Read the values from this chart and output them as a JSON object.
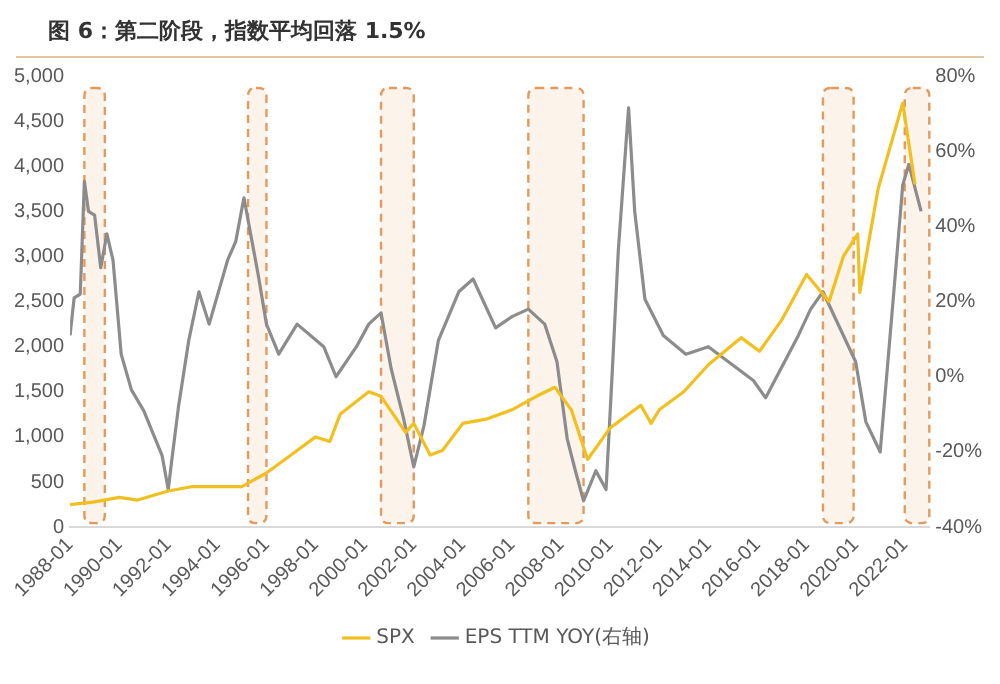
{
  "chart_data": {
    "type": "line",
    "title": "图 6：第二阶段，指数平均回落 1.5%",
    "xlim": [
      "1988-01",
      "2023-01"
    ],
    "xticks": [
      "1988-01",
      "1990-01",
      "1992-01",
      "1994-01",
      "1996-01",
      "1998-01",
      "2000-01",
      "2002-01",
      "2004-01",
      "2006-01",
      "2008-01",
      "2010-01",
      "2012-01",
      "2014-01",
      "2016-01",
      "2018-01",
      "2020-01",
      "2022-01"
    ],
    "ylim": [
      0,
      5000
    ],
    "yticks": [
      0,
      500,
      {
        "value": 1000,
        "label": "1,000"
      },
      {
        "value": 1500,
        "label": "1,500"
      },
      {
        "value": 2000,
        "label": "2,000"
      },
      {
        "value": 2500,
        "label": "2,500"
      },
      {
        "value": 3000,
        "label": "3,000"
      },
      {
        "value": 3500,
        "label": "3,500"
      },
      {
        "value": 4000,
        "label": "4,000"
      },
      {
        "value": 4500,
        "label": "4,500"
      },
      {
        "value": 5000,
        "label": "5,000"
      }
    ],
    "y2lim": [
      -40,
      80
    ],
    "y2ticks": [
      {
        "value": -40,
        "label": "-40%"
      },
      {
        "value": -20,
        "label": "-20%"
      },
      {
        "value": 0,
        "label": "0%"
      },
      {
        "value": 20,
        "label": "20%"
      },
      {
        "value": 40,
        "label": "40%"
      },
      {
        "value": 60,
        "label": "60%"
      },
      {
        "value": 80,
        "label": "80%"
      }
    ],
    "grid": false,
    "legend": "bottom",
    "marker": "none",
    "bands": [
      {
        "axis": "x",
        "from": "1988-08",
        "to": "1989-06",
        "color": "#e39a5c"
      },
      {
        "axis": "x",
        "from": "1995-04",
        "to": "1996-01",
        "color": "#e39a5c"
      },
      {
        "axis": "x",
        "from": "2000-09",
        "to": "2002-01",
        "color": "#e39a5c"
      },
      {
        "axis": "x",
        "from": "2006-09",
        "to": "2008-12",
        "color": "#e39a5c"
      },
      {
        "axis": "x",
        "from": "2018-09",
        "to": "2019-12",
        "color": "#e39a5c"
      },
      {
        "axis": "x",
        "from": "2022-01",
        "to": "2023-01",
        "color": "#e39a5c"
      }
    ],
    "series": [
      {
        "name": "SPX",
        "color": "#f2c01e",
        "x": [
          "1988-01",
          "1989-01",
          "1990-01",
          "1990-10",
          "1992-01",
          "1993-01",
          "1994-01",
          "1995-01",
          "1996-01",
          "1997-01",
          "1998-01",
          "1998-08",
          "1999-01",
          "2000-03",
          "2000-09",
          "2001-09",
          "2002-01",
          "2002-09",
          "2003-03",
          "2004-01",
          "2005-01",
          "2006-01",
          "2007-01",
          "2007-10",
          "2008-06",
          "2009-02",
          "2010-01",
          "2011-04",
          "2011-09",
          "2012-01",
          "2013-01",
          "2014-01",
          "2015-05",
          "2016-02",
          "2017-01",
          "2018-01",
          "2018-12",
          "2019-07",
          "2020-02",
          "2020-03",
          "2020-12",
          "2021-12",
          "2022-06"
        ],
        "values": [
          250,
          280,
          330,
          300,
          400,
          450,
          450,
          450,
          600,
          800,
          1000,
          950,
          1250,
          1500,
          1450,
          1050,
          1150,
          800,
          850,
          1150,
          1200,
          1300,
          1450,
          1550,
          1300,
          750,
          1100,
          1350,
          1150,
          1300,
          1500,
          1800,
          2100,
          1950,
          2300,
          2800,
          2500,
          3000,
          3250,
          2600,
          3750,
          4700,
          3800
        ]
      },
      {
        "name": "EPS TTM YOY(右轴)",
        "color": "#8c8c8c",
        "axis": "y2",
        "x": [
          "1988-01",
          "1988-03",
          "1988-06",
          "1988-08",
          "1988-10",
          "1989-01",
          "1989-04",
          "1989-07",
          "1989-10",
          "1990-02",
          "1990-07",
          "1991-01",
          "1991-10",
          "1992-01",
          "1992-03",
          "1992-06",
          "1992-11",
          "1993-04",
          "1993-09",
          "1994-06",
          "1994-10",
          "1995-02",
          "1995-09",
          "1996-01",
          "1996-07",
          "1997-04",
          "1998-05",
          "1998-11",
          "1999-09",
          "2000-03",
          "2000-09",
          "2001-02",
          "2001-08",
          "2002-01",
          "2002-06",
          "2003-01",
          "2003-11",
          "2004-06",
          "2005-05",
          "2006-01",
          "2006-09",
          "2007-05",
          "2007-11",
          "2008-04",
          "2008-08",
          "2008-12",
          "2009-06",
          "2009-11",
          "2010-02",
          "2010-05",
          "2010-10",
          "2011-01",
          "2011-06",
          "2012-03",
          "2013-02",
          "2014-01",
          "2015-11",
          "2016-05",
          "2017-09",
          "2018-03",
          "2018-09",
          "2020-01",
          "2020-06",
          "2021-01",
          "2021-08",
          "2021-12",
          "2022-03",
          "2022-09"
        ],
        "values": [
          11,
          21,
          22,
          52,
          44,
          43,
          29,
          38,
          31,
          6,
          -3.5,
          -9,
          -21,
          -30,
          -21,
          -8,
          9.6,
          22.6,
          14,
          31,
          36,
          47.6,
          27,
          14,
          6,
          14,
          8,
          0,
          8,
          14,
          17,
          2,
          -11,
          -24,
          -13,
          9.6,
          22.6,
          26,
          13,
          16,
          18,
          14,
          4,
          -16.5,
          -25,
          -33,
          -25,
          -30,
          1,
          33.7,
          71.5,
          44,
          20.6,
          11,
          6,
          8,
          -1,
          -5.6,
          11,
          18,
          22.6,
          4,
          -12,
          -20,
          24.8,
          51,
          56.5,
          44
        ]
      }
    ]
  }
}
